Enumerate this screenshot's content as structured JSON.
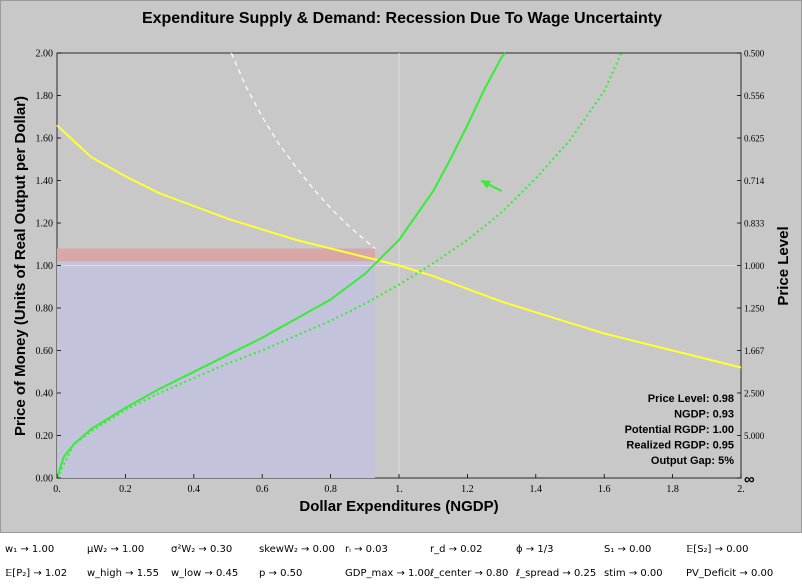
{
  "chart_data": {
    "type": "line",
    "title": "Expenditure Supply & Demand: Recession Due To Wage Uncertainty",
    "xlabel": "Dollar Expenditures (NGDP)",
    "ylabel": "Price of Money (Units of Real Output per Dollar)",
    "y2label": "Price Level",
    "xlim": [
      0,
      2
    ],
    "ylim": [
      0,
      2
    ],
    "x_ticks": [
      "0.",
      "0.2",
      "0.4",
      "0.6",
      "0.8",
      "1.",
      "1.2",
      "1.4",
      "1.6",
      "1.8",
      "2."
    ],
    "x_tick_values": [
      0,
      0.2,
      0.4,
      0.6,
      0.8,
      1.0,
      1.2,
      1.4,
      1.6,
      1.8,
      2.0
    ],
    "y_ticks": [
      "0.00",
      "0.20",
      "0.40",
      "0.60",
      "0.80",
      "1.00",
      "1.20",
      "1.40",
      "1.60",
      "1.80",
      "2.00"
    ],
    "y_tick_values": [
      0,
      0.2,
      0.4,
      0.6,
      0.8,
      1.0,
      1.2,
      1.4,
      1.6,
      1.8,
      2.0
    ],
    "y2_ticks": [
      "0.500",
      "0.556",
      "0.625",
      "0.714",
      "0.833",
      "1.000",
      "1.250",
      "1.667",
      "2.500",
      "5.000",
      "∞"
    ],
    "y2_tick_values": [
      2.0,
      1.8,
      1.6,
      1.4,
      1.2,
      1.0,
      0.8,
      0.6,
      0.4,
      0.2,
      0.0
    ],
    "grid": false,
    "series": [
      {
        "style": "solid",
        "color": "#ffff33",
        "x": [
          0.0,
          0.1,
          0.2,
          0.3,
          0.4,
          0.5,
          0.6,
          0.7,
          0.8,
          0.9,
          1.0,
          1.1,
          1.2,
          1.3,
          1.4,
          1.5,
          1.6,
          1.7,
          1.8,
          1.9,
          2.0
        ],
        "y": [
          1.66,
          1.51,
          1.42,
          1.34,
          1.28,
          1.22,
          1.17,
          1.12,
          1.08,
          1.04,
          1.0,
          0.95,
          0.89,
          0.83,
          0.78,
          0.73,
          0.68,
          0.64,
          0.6,
          0.56,
          0.52
        ]
      },
      {
        "style": "solid",
        "color": "#33ee33",
        "x": [
          0.0,
          0.02,
          0.05,
          0.1,
          0.2,
          0.3,
          0.4,
          0.5,
          0.6,
          0.7,
          0.8,
          0.9,
          1.0,
          1.1,
          1.15,
          1.2,
          1.25,
          1.3,
          1.31
        ],
        "y": [
          0.0,
          0.1,
          0.16,
          0.23,
          0.33,
          0.42,
          0.5,
          0.58,
          0.66,
          0.75,
          0.84,
          0.96,
          1.12,
          1.35,
          1.5,
          1.66,
          1.83,
          1.98,
          2.0
        ]
      },
      {
        "style": "dotted",
        "color": "#33ee33",
        "x": [
          0.0,
          0.05,
          0.1,
          0.2,
          0.3,
          0.4,
          0.5,
          0.6,
          0.7,
          0.8,
          0.9,
          1.0,
          1.1,
          1.2,
          1.3,
          1.4,
          1.5,
          1.6,
          1.65
        ],
        "y": [
          0.0,
          0.16,
          0.22,
          0.32,
          0.4,
          0.47,
          0.54,
          0.6,
          0.67,
          0.74,
          0.82,
          0.91,
          1.01,
          1.12,
          1.25,
          1.41,
          1.59,
          1.82,
          2.0
        ]
      },
      {
        "style": "dashed",
        "color": "#ffffff",
        "x": [
          0.51,
          0.55,
          0.6,
          0.65,
          0.7,
          0.75,
          0.8,
          0.85,
          0.9,
          0.93
        ],
        "y": [
          2.0,
          1.85,
          1.7,
          1.57,
          1.46,
          1.36,
          1.27,
          1.19,
          1.12,
          1.08
        ]
      }
    ],
    "stats": [
      {
        "label": "Price Level",
        "value": "0.98"
      },
      {
        "label": "NGDP",
        "value": "0.93"
      },
      {
        "label": "Potential RGDP",
        "value": "1.00"
      },
      {
        "label": "Realized RGDP",
        "value": "0.95"
      },
      {
        "label": "Output Gap",
        "value": "5%"
      }
    ],
    "shaded_blue": {
      "x": [
        0,
        0.93
      ],
      "y": [
        0,
        1.02
      ],
      "color": "#c3c3dc"
    },
    "shaded_red": {
      "x": [
        0,
        0.93
      ],
      "y": [
        1.02,
        1.08
      ],
      "color": "#d8a8a8"
    },
    "reference_lines": {
      "x": 1.0,
      "y": 1.0,
      "color": "#dedede"
    },
    "arrow": {
      "from": [
        1.3,
        1.35
      ],
      "to": [
        1.24,
        1.4
      ],
      "color": "#33ee33"
    }
  },
  "parameters": [
    [
      "w₁ → 1.00",
      "μW₂ → 1.00",
      "σ²W₂ → 0.30",
      "skewW₂ → 0.00",
      "rᵢ → 0.03",
      "r_d → 0.02",
      "ϕ → 1/3",
      "S₁ → 0.00",
      "𝔼[S₂] → 0.00"
    ],
    [
      "𝔼[P₂] → 1.02",
      "w_high → 1.55",
      "w_low → 0.45",
      "p → 0.50",
      "GDP_max → 1.00",
      "ℓ_center → 0.80",
      "ℓ_spread → 0.25",
      "stim → 0.00",
      "PV_Deficit → 0.00"
    ]
  ]
}
